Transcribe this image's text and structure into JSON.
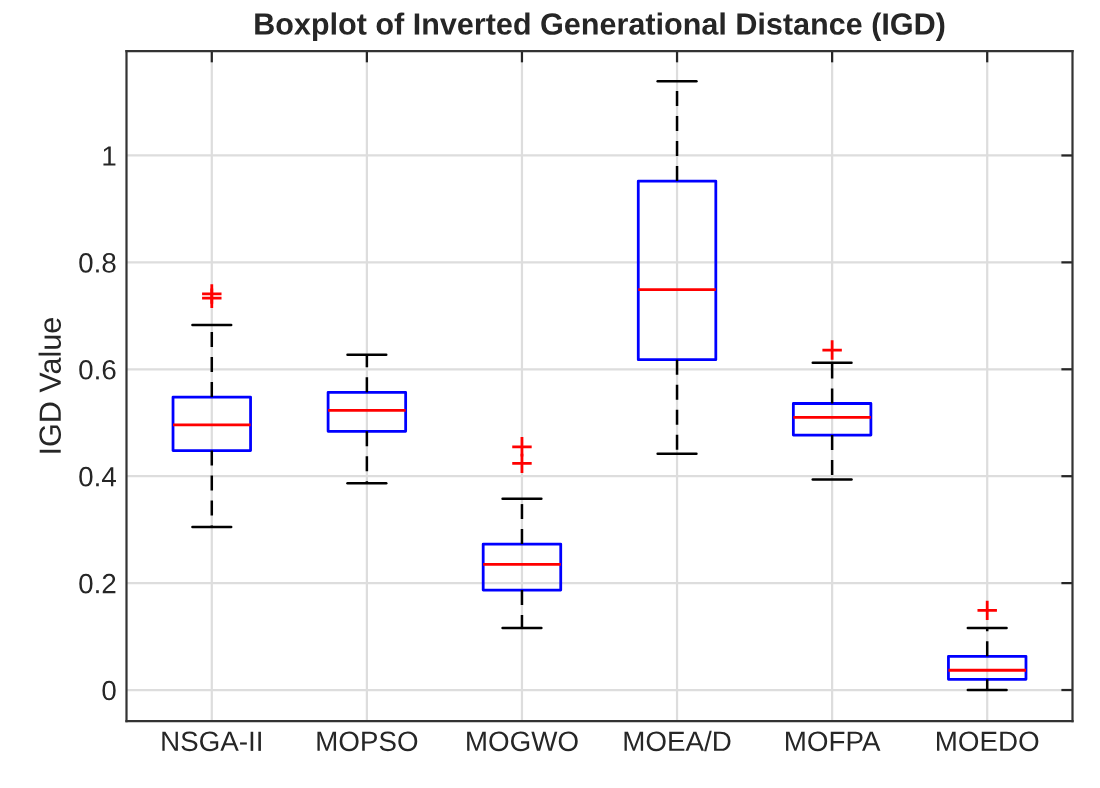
{
  "chart_data": {
    "type": "box",
    "title": "Boxplot of Inverted Generational Distance (IGD)",
    "ylabel": "IGD Value",
    "categories": [
      "NSGA-II",
      "MOPSO",
      "MOGWO",
      "MOEA/D",
      "MOFPA",
      "MOEDO"
    ],
    "boxes": [
      {
        "low": 0.305,
        "q1": 0.448,
        "median": 0.496,
        "q3": 0.548,
        "high": 0.683,
        "outliers": [
          0.733,
          0.741
        ]
      },
      {
        "low": 0.387,
        "q1": 0.484,
        "median": 0.523,
        "q3": 0.557,
        "high": 0.627
      },
      {
        "low": 0.116,
        "q1": 0.187,
        "median": 0.235,
        "q3": 0.273,
        "high": 0.358,
        "outliers": [
          0.424,
          0.455
        ]
      },
      {
        "low": 0.442,
        "q1": 0.618,
        "median": 0.749,
        "q3": 0.952,
        "high": 1.139
      },
      {
        "low": 0.394,
        "q1": 0.477,
        "median": 0.51,
        "q3": 0.536,
        "high": 0.612,
        "outliers": [
          0.636
        ]
      },
      {
        "low": 0,
        "q1": 0.02,
        "median": 0.037,
        "q3": 0.063,
        "high": 0.116,
        "outliers": [
          0.149
        ]
      }
    ],
    "color": "#0000ff",
    "ylim": [
      -0.058,
      1.195
    ],
    "yticks": [
      0,
      0.2,
      0.4,
      0.6,
      0.8,
      1
    ],
    "grid": true
  }
}
